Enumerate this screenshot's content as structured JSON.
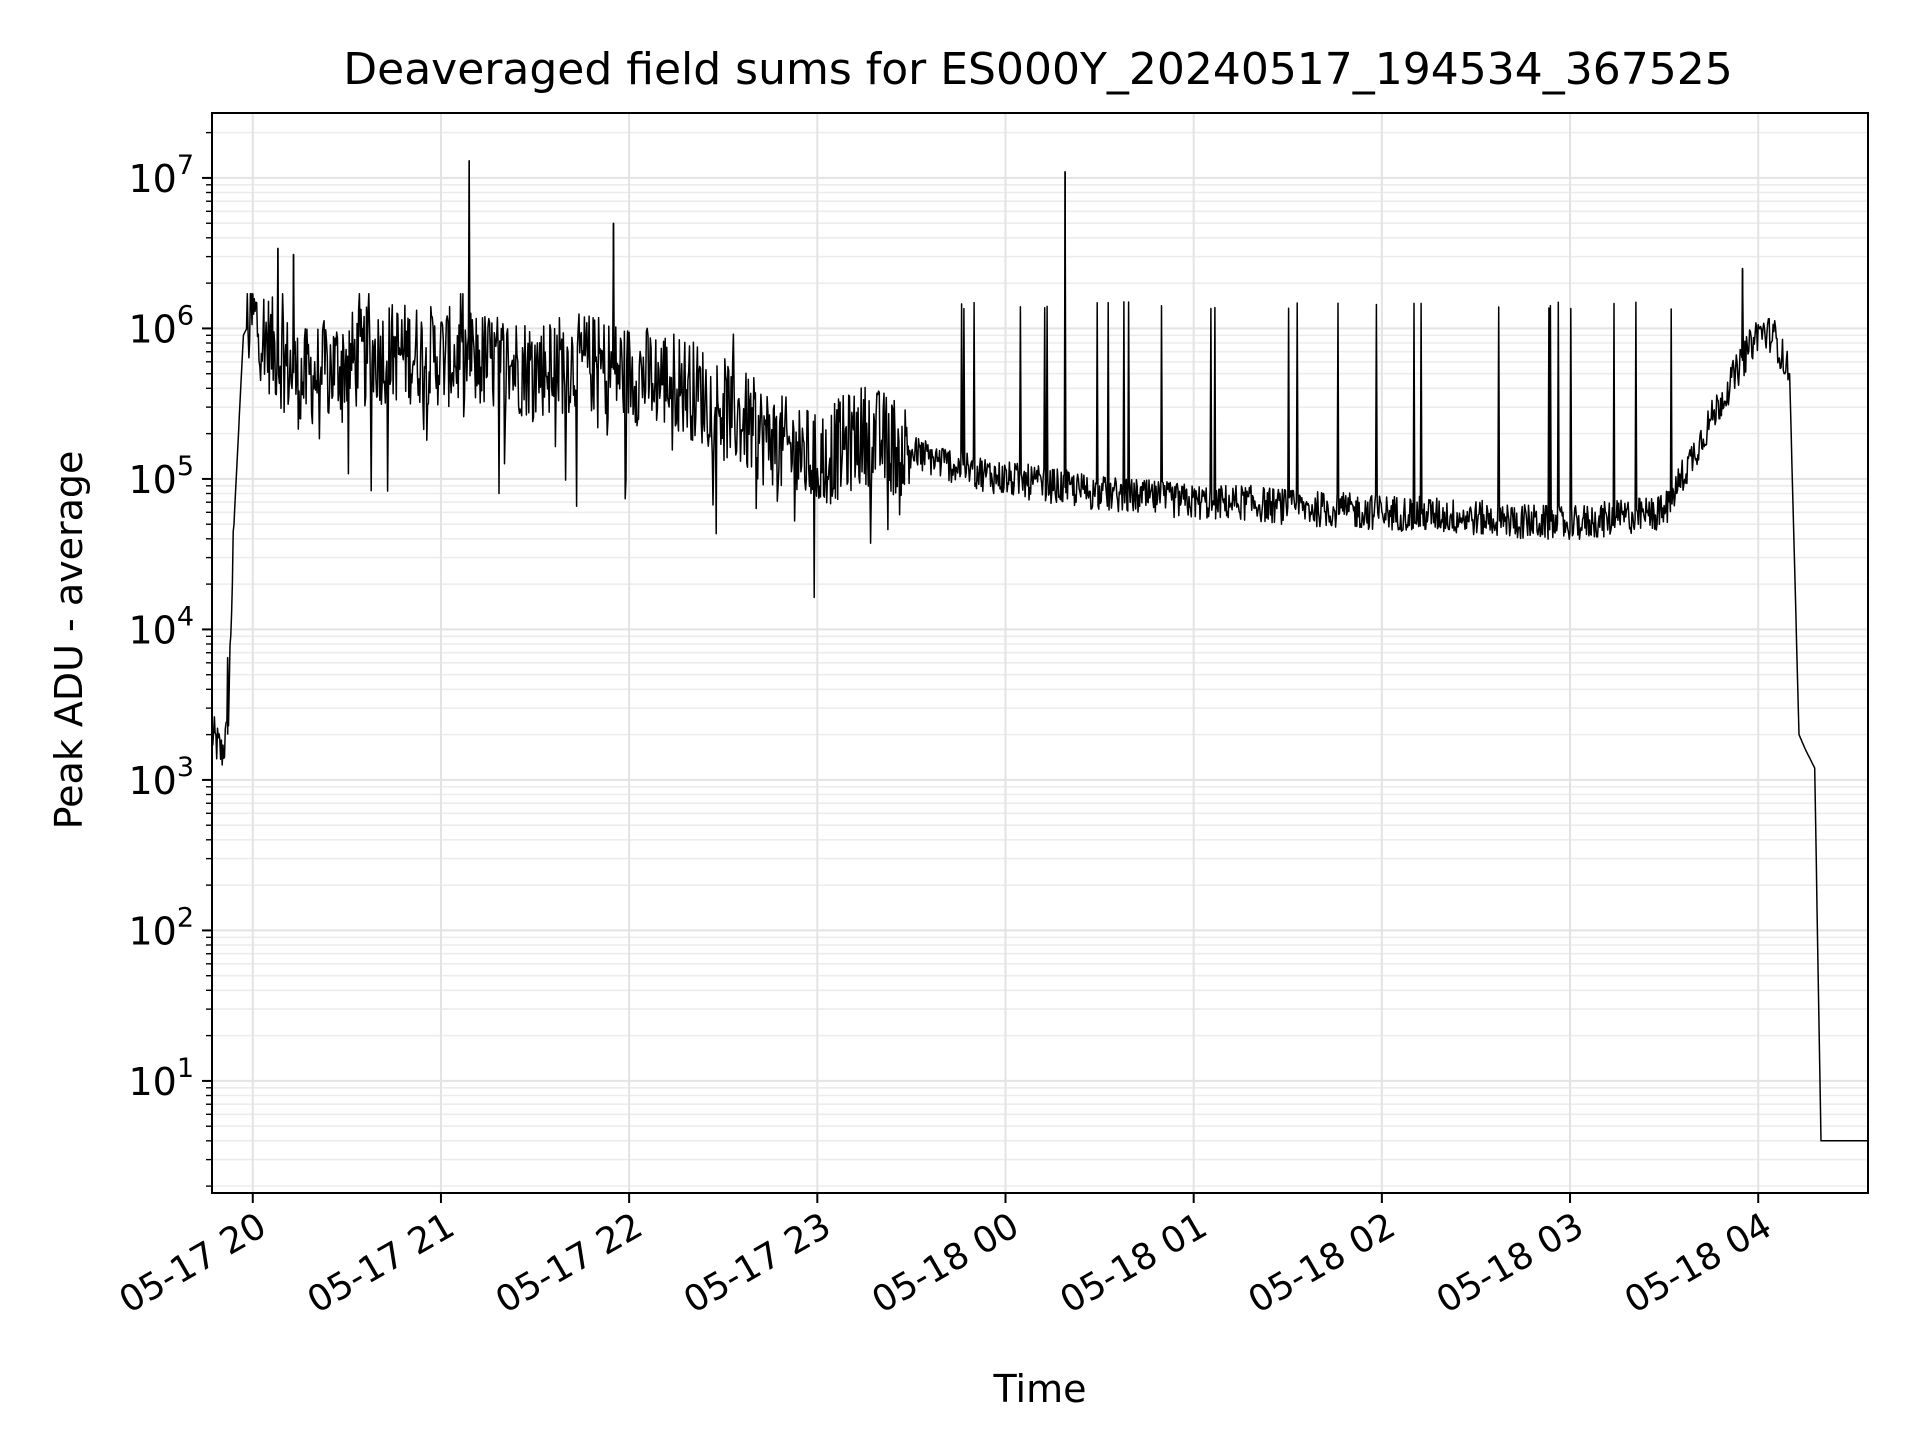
{
  "chart_data": {
    "type": "line",
    "title": "Deaveraged field sums for ES000Y_20240517_194534_367525",
    "xlabel": "Time",
    "ylabel": "Peak ADU - average",
    "yscale": "log",
    "ylim": [
      1.8,
      27000000.0
    ],
    "xlim": [
      "05-17 19:47",
      "05-18 04:35"
    ],
    "x_tick_labels": [
      "05-17 20",
      "05-17 21",
      "05-17 22",
      "05-17 23",
      "05-18 00",
      "05-18 01",
      "05-18 02",
      "05-18 03",
      "05-18 04"
    ],
    "y_tick_labels": [
      {
        "base": "10",
        "exp": "1"
      },
      {
        "base": "10",
        "exp": "2"
      },
      {
        "base": "10",
        "exp": "3"
      },
      {
        "base": "10",
        "exp": "4"
      },
      {
        "base": "10",
        "exp": "5"
      },
      {
        "base": "10",
        "exp": "6"
      },
      {
        "base": "10",
        "exp": "7"
      }
    ],
    "grid": true,
    "line_color": "#000000",
    "series": [
      {
        "x": [
          "05-17 19:47",
          "05-17 19:50",
          "05-17 19:52",
          "05-17 19:54",
          "05-17 19:57",
          "05-17 20:00",
          "05-17 20:05",
          "05-17 20:15",
          "05-17 20:30",
          "05-17 20:45",
          "05-17 21:00",
          "05-17 21:15",
          "05-17 21:30",
          "05-17 21:45",
          "05-17 22:00",
          "05-17 22:15",
          "05-17 22:30",
          "05-17 22:45",
          "05-17 23:00",
          "05-17 23:15",
          "05-17 23:30",
          "05-17 23:45",
          "05-18 00:00",
          "05-18 00:15",
          "05-18 00:30",
          "05-18 00:45",
          "05-18 01:00",
          "05-18 01:15",
          "05-18 01:30",
          "05-18 01:45",
          "05-18 02:00",
          "05-18 02:15",
          "05-18 02:30",
          "05-18 02:45",
          "05-18 03:00",
          "05-18 03:15",
          "05-18 03:30",
          "05-18 03:45",
          "05-18 04:00",
          "05-18 04:05",
          "05-18 04:10",
          "05-18 04:13",
          "05-18 04:15",
          "05-18 04:18",
          "05-18 04:20",
          "05-18 04:25",
          "05-18 04:35"
        ],
        "y": [
          2000,
          1500,
          2000,
          50000,
          900000,
          1200000,
          800000,
          450000,
          600000,
          700000,
          650000,
          600000,
          550000,
          600000,
          500000,
          450000,
          300000,
          180000,
          130000,
          200000,
          150000,
          120000,
          100000,
          90000,
          80000,
          75000,
          70000,
          70000,
          65000,
          62000,
          60000,
          58000,
          55000,
          52000,
          50000,
          55000,
          60000,
          250000,
          950000,
          900000,
          500000,
          2000,
          1600,
          1200,
          4,
          4,
          4
        ],
        "spikes": [
          {
            "x": "05-17 20:08",
            "y": 3400000
          },
          {
            "x": "05-17 20:13",
            "y": 3100000
          },
          {
            "x": "05-17 21:09",
            "y": 13000000
          },
          {
            "x": "05-17 21:55",
            "y": 5000000
          },
          {
            "x": "05-18 00:19",
            "y": 11000000
          },
          {
            "x": "05-18 03:55",
            "y": 2500000
          },
          {
            "x": "05-17 19:52",
            "y": 6500
          }
        ]
      }
    ]
  }
}
